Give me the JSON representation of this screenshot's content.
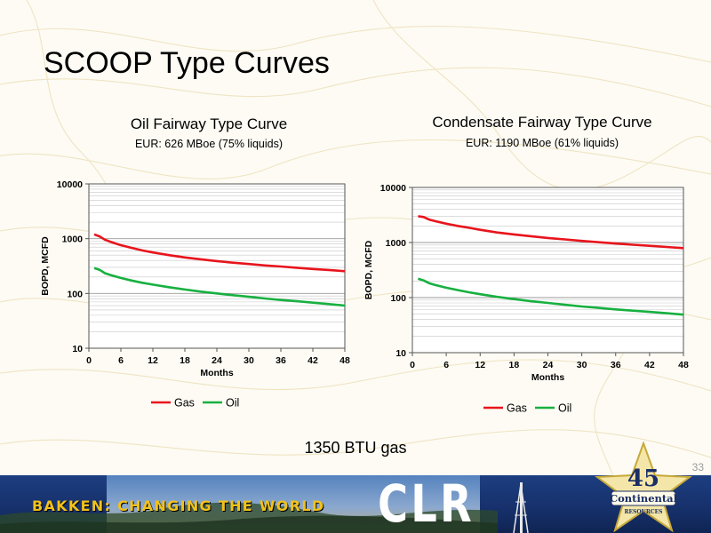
{
  "slide": {
    "title": "SCOOP Type Curves",
    "footnote": "1350 BTU gas",
    "page_number": "33"
  },
  "banner": {
    "slogan": "BAKKEN: CHANGING THE WORLD",
    "company_mark": "CLR",
    "logo_number": "45",
    "logo_name": "Continental",
    "logo_sub": "RESOURCES"
  },
  "colors": {
    "gas": "#e8141c",
    "oil": "#17b040",
    "banner_blue": "#1d3e80",
    "slogan_gold": "#f2c21a"
  },
  "chart_data": [
    {
      "type": "line",
      "title": "Oil Fairway Type Curve",
      "subtitle": "EUR: 626 MBoe (75% liquids)",
      "xlabel": "Months",
      "ylabel": "BOPD, MCFD",
      "xlim": [
        0,
        48
      ],
      "ylim": [
        10,
        10000
      ],
      "y_scale": "log",
      "xticks": [
        0,
        6,
        12,
        18,
        24,
        30,
        36,
        42,
        48
      ],
      "yticks": [
        10,
        100,
        1000,
        10000
      ],
      "grid": true,
      "legend": "bottom",
      "x": [
        1,
        2,
        3,
        4,
        6,
        8,
        10,
        12,
        15,
        18,
        21,
        24,
        27,
        30,
        33,
        36,
        39,
        42,
        45,
        48
      ],
      "series": [
        {
          "name": "Gas",
          "color": "#e8141c",
          "values": [
            1200,
            1100,
            960,
            880,
            760,
            680,
            610,
            560,
            500,
            455,
            420,
            390,
            365,
            345,
            325,
            310,
            295,
            280,
            268,
            255
          ]
        },
        {
          "name": "Oil",
          "color": "#17b040",
          "values": [
            290,
            270,
            235,
            218,
            192,
            172,
            157,
            145,
            130,
            118,
            108,
            100,
            93,
            87,
            81,
            76,
            72,
            68,
            64,
            60
          ]
        }
      ]
    },
    {
      "type": "line",
      "title": "Condensate Fairway Type Curve",
      "subtitle": "EUR: 1190 MBoe (61% liquids)",
      "xlabel": "Months",
      "ylabel": "BOPD, MCFD",
      "xlim": [
        0,
        48
      ],
      "ylim": [
        10,
        10000
      ],
      "y_scale": "log",
      "xticks": [
        0,
        6,
        12,
        18,
        24,
        30,
        36,
        42,
        48
      ],
      "yticks": [
        10,
        100,
        1000,
        10000
      ],
      "grid": true,
      "legend": "bottom",
      "x": [
        1,
        2,
        3,
        4,
        6,
        8,
        10,
        12,
        15,
        18,
        21,
        24,
        27,
        30,
        33,
        36,
        39,
        42,
        45,
        48
      ],
      "series": [
        {
          "name": "Gas",
          "color": "#e8141c",
          "values": [
            3000,
            2900,
            2600,
            2450,
            2200,
            2000,
            1850,
            1700,
            1520,
            1400,
            1300,
            1210,
            1140,
            1070,
            1010,
            960,
            910,
            870,
            830,
            790
          ]
        },
        {
          "name": "Oil",
          "color": "#17b040",
          "values": [
            220,
            205,
            182,
            170,
            151,
            137,
            125,
            115,
            103,
            94,
            86,
            80,
            74,
            69,
            65,
            61,
            58,
            55,
            52,
            49
          ]
        }
      ]
    }
  ]
}
